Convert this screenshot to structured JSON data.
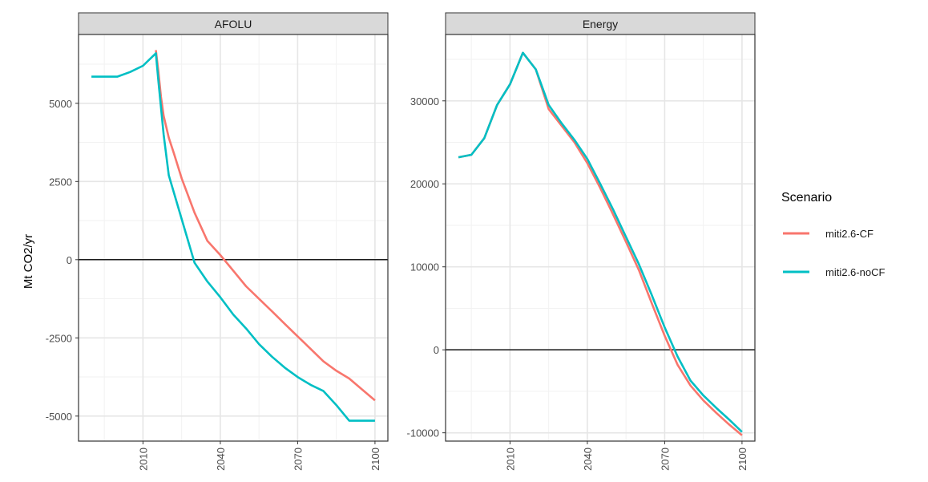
{
  "chart_data": {
    "type": "line",
    "ylabel": "Mt CO2/yr",
    "legend": {
      "title": "Scenario",
      "position": "right"
    },
    "series_colors": {
      "miti2.6-CF": "#F8766D",
      "miti2.6-noCF": "#00BFC4"
    },
    "grid": true,
    "panels": [
      {
        "title": "AFOLU",
        "xlim": [
          1985,
          2105
        ],
        "ylim": [
          -5800,
          7200
        ],
        "xticks": [
          2010,
          2040,
          2070,
          2100
        ],
        "yticks": [
          -5000,
          -2500,
          0,
          2500,
          5000
        ],
        "series": [
          {
            "name": "miti2.6-CF",
            "x": [
              2015,
              2016,
              2017,
              2018,
              2020,
              2022,
              2025,
              2030,
              2035,
              2040,
              2045,
              2050,
              2055,
              2060,
              2065,
              2070,
              2075,
              2080,
              2085,
              2090,
              2095,
              2100
            ],
            "values": [
              6700,
              6000,
              5200,
              4600,
              3900,
              3400,
              2600,
              1500,
              600,
              150,
              -350,
              -850,
              -1250,
              -1650,
              -2050,
              -2450,
              -2850,
              -3250,
              -3550,
              -3800,
              -4150,
              -4500
            ]
          },
          {
            "name": "miti2.6-noCF",
            "x": [
              1990,
              1995,
              2000,
              2005,
              2010,
              2015,
              2016,
              2018,
              2020,
              2025,
              2030,
              2035,
              2040,
              2045,
              2050,
              2055,
              2060,
              2065,
              2070,
              2075,
              2080,
              2085,
              2090,
              2095,
              2100
            ],
            "values": [
              5850,
              5850,
              5850,
              6000,
              6200,
              6600,
              5700,
              4000,
              2700,
              1300,
              -100,
              -700,
              -1200,
              -1750,
              -2200,
              -2700,
              -3100,
              -3450,
              -3750,
              -4000,
              -4200,
              -4650,
              -5150,
              -5150,
              -5150
            ]
          }
        ]
      },
      {
        "title": "Energy",
        "xlim": [
          1985,
          2105
        ],
        "ylim": [
          -11000,
          38000
        ],
        "xticks": [
          2010,
          2040,
          2070,
          2100
        ],
        "yticks": [
          -10000,
          0,
          10000,
          20000,
          30000
        ],
        "series": [
          {
            "name": "miti2.6-CF",
            "x": [
              1990,
              1995,
              2000,
              2005,
              2010,
              2015,
              2020,
              2025,
              2030,
              2035,
              2040,
              2045,
              2050,
              2055,
              2060,
              2065,
              2070,
              2075,
              2080,
              2085,
              2090,
              2095,
              2100
            ],
            "values": [
              23200,
              23500,
              25500,
              29500,
              32000,
              35800,
              33800,
              29000,
              27000,
              25000,
              22500,
              19500,
              16300,
              13000,
              9600,
              5600,
              1700,
              -1800,
              -4300,
              -6100,
              -7600,
              -9000,
              -10300
            ]
          },
          {
            "name": "miti2.6-noCF",
            "x": [
              1990,
              1995,
              2000,
              2005,
              2010,
              2015,
              2020,
              2025,
              2030,
              2035,
              2040,
              2045,
              2050,
              2055,
              2060,
              2065,
              2070,
              2075,
              2080,
              2085,
              2090,
              2095,
              2100
            ],
            "values": [
              23200,
              23500,
              25500,
              29500,
              32000,
              35800,
              33800,
              29500,
              27300,
              25300,
              23000,
              20000,
              16900,
              13600,
              10300,
              6600,
              2700,
              -800,
              -3700,
              -5500,
              -7000,
              -8400,
              -9900
            ]
          }
        ]
      }
    ]
  }
}
